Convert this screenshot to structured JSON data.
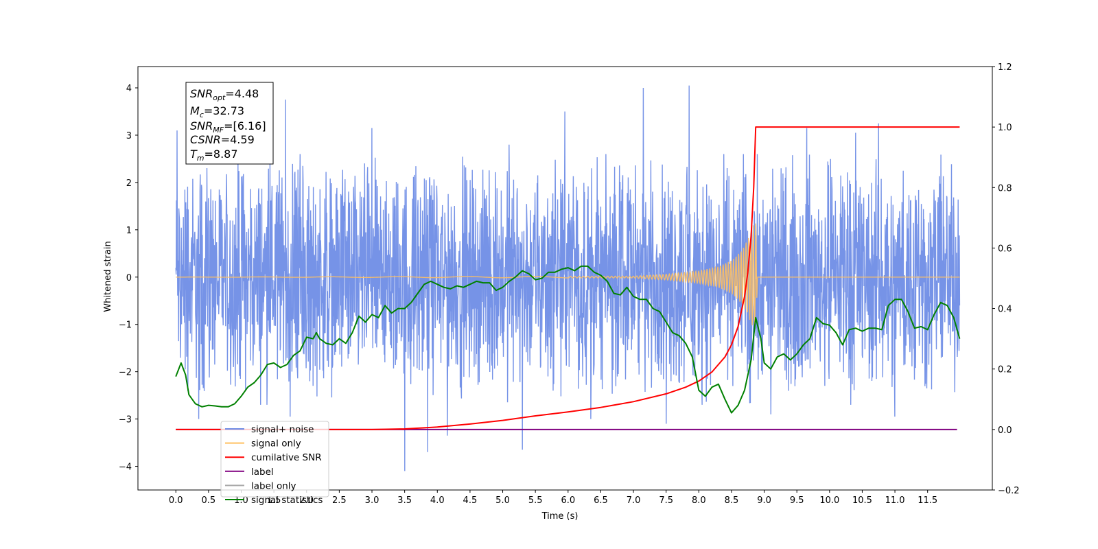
{
  "chart_data": {
    "type": "line",
    "xlabel": "Time (s)",
    "ylabel": "Whitened strain",
    "xlim": [
      -0.58,
      12.49
    ],
    "ylim": [
      -4.5,
      4.45
    ],
    "y2lim": [
      -0.2,
      1.2
    ],
    "x_ticks": [
      "0.0",
      "0.5",
      "1.0",
      "1.5",
      "2.0",
      "2.5",
      "3.0",
      "3.5",
      "4.0",
      "4.5",
      "5.0",
      "5.5",
      "6.0",
      "6.5",
      "7.0",
      "7.5",
      "8.0",
      "8.5",
      "9.0",
      "9.5",
      "10.0",
      "10.5",
      "11.0",
      "11.5"
    ],
    "y_ticks": [
      "4",
      "3",
      "2",
      "1",
      "0",
      "−1",
      "−2",
      "−3",
      "−4"
    ],
    "y2_ticks": [
      "1.2",
      "1.0",
      "0.8",
      "0.6",
      "0.4",
      "0.2",
      "0.0",
      "−0.2"
    ],
    "annotation": {
      "lines": [
        {
          "base": "SNR",
          "sub": "opt",
          "value": "=4.48"
        },
        {
          "base": "M",
          "sub": "c",
          "value": "=32.73"
        },
        {
          "base": "SNR",
          "sub": "MF",
          "value": "=[6.16]"
        },
        {
          "base": "CSNR",
          "sub": "",
          "value": "=4.59"
        },
        {
          "base": "T",
          "sub": "m",
          "value": "=8.87"
        }
      ]
    },
    "legend": {
      "placement": "lower-left",
      "entries": [
        {
          "label": "signal+ noise",
          "color": "#6f8de6"
        },
        {
          "label": "signal only",
          "color": "#ffc060"
        },
        {
          "label": "cumilative SNR",
          "color": "#ff0000"
        },
        {
          "label": "label",
          "color": "#800080"
        },
        {
          "label": "label only",
          "color": "#a9a9a9"
        },
        {
          "label": "signal statistics",
          "color": "#008000"
        }
      ]
    },
    "series": [
      {
        "name": "signal+ noise",
        "axis": "left",
        "color": "#6f8de6",
        "x_range": [
          0.0,
          11.99
        ],
        "envelope": 1.35,
        "peaks": [
          [
            0.02,
            3.1
          ],
          [
            0.35,
            -3.0
          ],
          [
            1.68,
            3.75
          ],
          [
            1.75,
            -2.95
          ],
          [
            3.0,
            3.15
          ],
          [
            3.5,
            -4.1
          ],
          [
            3.85,
            -3.7
          ],
          [
            4.15,
            -3.35
          ],
          [
            5.3,
            -3.65
          ],
          [
            5.1,
            2.8
          ],
          [
            5.95,
            3.5
          ],
          [
            6.35,
            -3.0
          ],
          [
            7.15,
            4.0
          ],
          [
            7.5,
            -3.1
          ],
          [
            7.85,
            4.05
          ],
          [
            9.1,
            -2.9
          ],
          [
            9.65,
            3.15
          ],
          [
            10.75,
            3.25
          ],
          [
            10.4,
            3.05
          ],
          [
            11.0,
            -2.95
          ]
        ]
      },
      {
        "name": "signal only",
        "axis": "left",
        "color": "#ffc060",
        "points": [
          [
            0.0,
            0.0
          ],
          [
            7.0,
            0.02
          ],
          [
            7.5,
            0.06
          ],
          [
            8.0,
            0.13
          ],
          [
            8.3,
            0.22
          ],
          [
            8.5,
            0.35
          ],
          [
            8.65,
            0.55
          ],
          [
            8.75,
            0.8
          ],
          [
            8.82,
            1.05
          ],
          [
            8.87,
            1.2
          ],
          [
            8.9,
            0.0
          ],
          [
            11.99,
            0.0
          ]
        ]
      },
      {
        "name": "cumilative SNR",
        "axis": "right",
        "color": "#ff0000",
        "points": [
          [
            0.0,
            0.0
          ],
          [
            3.0,
            0.0
          ],
          [
            3.5,
            0.002
          ],
          [
            4.0,
            0.008
          ],
          [
            4.5,
            0.018
          ],
          [
            5.0,
            0.03
          ],
          [
            5.5,
            0.045
          ],
          [
            6.0,
            0.058
          ],
          [
            6.5,
            0.073
          ],
          [
            7.0,
            0.092
          ],
          [
            7.5,
            0.118
          ],
          [
            7.8,
            0.14
          ],
          [
            8.0,
            0.16
          ],
          [
            8.2,
            0.19
          ],
          [
            8.4,
            0.24
          ],
          [
            8.5,
            0.28
          ],
          [
            8.6,
            0.34
          ],
          [
            8.7,
            0.44
          ],
          [
            8.75,
            0.52
          ],
          [
            8.8,
            0.64
          ],
          [
            8.84,
            0.8
          ],
          [
            8.87,
            1.0
          ],
          [
            11.99,
            1.0
          ]
        ]
      },
      {
        "name": "label",
        "axis": "right",
        "color": "#800080",
        "points": [
          [
            0.0,
            0.0
          ],
          [
            11.95,
            0.0
          ]
        ]
      },
      {
        "name": "signal statistics",
        "axis": "right",
        "color": "#008000",
        "points": [
          [
            0.0,
            0.175
          ],
          [
            0.08,
            0.22
          ],
          [
            0.15,
            0.18
          ],
          [
            0.2,
            0.115
          ],
          [
            0.3,
            0.085
          ],
          [
            0.4,
            0.075
          ],
          [
            0.5,
            0.08
          ],
          [
            0.6,
            0.078
          ],
          [
            0.7,
            0.075
          ],
          [
            0.8,
            0.075
          ],
          [
            0.9,
            0.085
          ],
          [
            1.0,
            0.11
          ],
          [
            1.1,
            0.14
          ],
          [
            1.2,
            0.155
          ],
          [
            1.3,
            0.18
          ],
          [
            1.4,
            0.215
          ],
          [
            1.5,
            0.22
          ],
          [
            1.6,
            0.205
          ],
          [
            1.7,
            0.215
          ],
          [
            1.8,
            0.245
          ],
          [
            1.9,
            0.26
          ],
          [
            2.0,
            0.305
          ],
          [
            2.1,
            0.3
          ],
          [
            2.15,
            0.32
          ],
          [
            2.2,
            0.3
          ],
          [
            2.3,
            0.285
          ],
          [
            2.4,
            0.28
          ],
          [
            2.5,
            0.3
          ],
          [
            2.6,
            0.285
          ],
          [
            2.7,
            0.32
          ],
          [
            2.8,
            0.375
          ],
          [
            2.9,
            0.355
          ],
          [
            3.0,
            0.38
          ],
          [
            3.1,
            0.37
          ],
          [
            3.2,
            0.41
          ],
          [
            3.3,
            0.385
          ],
          [
            3.4,
            0.4
          ],
          [
            3.5,
            0.4
          ],
          [
            3.6,
            0.42
          ],
          [
            3.7,
            0.45
          ],
          [
            3.8,
            0.48
          ],
          [
            3.9,
            0.49
          ],
          [
            4.0,
            0.48
          ],
          [
            4.1,
            0.47
          ],
          [
            4.2,
            0.465
          ],
          [
            4.3,
            0.475
          ],
          [
            4.4,
            0.47
          ],
          [
            4.5,
            0.48
          ],
          [
            4.6,
            0.49
          ],
          [
            4.7,
            0.485
          ],
          [
            4.8,
            0.485
          ],
          [
            4.9,
            0.46
          ],
          [
            5.0,
            0.47
          ],
          [
            5.1,
            0.49
          ],
          [
            5.2,
            0.505
          ],
          [
            5.3,
            0.525
          ],
          [
            5.4,
            0.515
          ],
          [
            5.5,
            0.495
          ],
          [
            5.6,
            0.5
          ],
          [
            5.7,
            0.52
          ],
          [
            5.8,
            0.52
          ],
          [
            5.9,
            0.53
          ],
          [
            6.0,
            0.535
          ],
          [
            6.1,
            0.525
          ],
          [
            6.2,
            0.54
          ],
          [
            6.3,
            0.54
          ],
          [
            6.4,
            0.52
          ],
          [
            6.5,
            0.51
          ],
          [
            6.6,
            0.49
          ],
          [
            6.7,
            0.45
          ],
          [
            6.8,
            0.445
          ],
          [
            6.9,
            0.47
          ],
          [
            7.0,
            0.44
          ],
          [
            7.1,
            0.43
          ],
          [
            7.2,
            0.43
          ],
          [
            7.3,
            0.4
          ],
          [
            7.4,
            0.39
          ],
          [
            7.5,
            0.355
          ],
          [
            7.6,
            0.32
          ],
          [
            7.7,
            0.31
          ],
          [
            7.8,
            0.285
          ],
          [
            7.9,
            0.24
          ],
          [
            8.0,
            0.13
          ],
          [
            8.1,
            0.11
          ],
          [
            8.2,
            0.14
          ],
          [
            8.3,
            0.15
          ],
          [
            8.4,
            0.1
          ],
          [
            8.5,
            0.055
          ],
          [
            8.6,
            0.08
          ],
          [
            8.7,
            0.13
          ],
          [
            8.8,
            0.23
          ],
          [
            8.87,
            0.37
          ],
          [
            8.95,
            0.3
          ],
          [
            9.0,
            0.22
          ],
          [
            9.1,
            0.2
          ],
          [
            9.2,
            0.24
          ],
          [
            9.3,
            0.25
          ],
          [
            9.4,
            0.23
          ],
          [
            9.5,
            0.25
          ],
          [
            9.6,
            0.28
          ],
          [
            9.7,
            0.3
          ],
          [
            9.8,
            0.37
          ],
          [
            9.9,
            0.35
          ],
          [
            10.0,
            0.345
          ],
          [
            10.1,
            0.32
          ],
          [
            10.2,
            0.28
          ],
          [
            10.3,
            0.33
          ],
          [
            10.4,
            0.335
          ],
          [
            10.5,
            0.325
          ],
          [
            10.6,
            0.335
          ],
          [
            10.7,
            0.335
          ],
          [
            10.8,
            0.33
          ],
          [
            10.9,
            0.41
          ],
          [
            11.0,
            0.43
          ],
          [
            11.1,
            0.43
          ],
          [
            11.2,
            0.39
          ],
          [
            11.3,
            0.335
          ],
          [
            11.4,
            0.34
          ],
          [
            11.5,
            0.33
          ],
          [
            11.6,
            0.38
          ],
          [
            11.7,
            0.42
          ],
          [
            11.8,
            0.41
          ],
          [
            11.9,
            0.37
          ],
          [
            11.99,
            0.3
          ]
        ]
      }
    ]
  }
}
